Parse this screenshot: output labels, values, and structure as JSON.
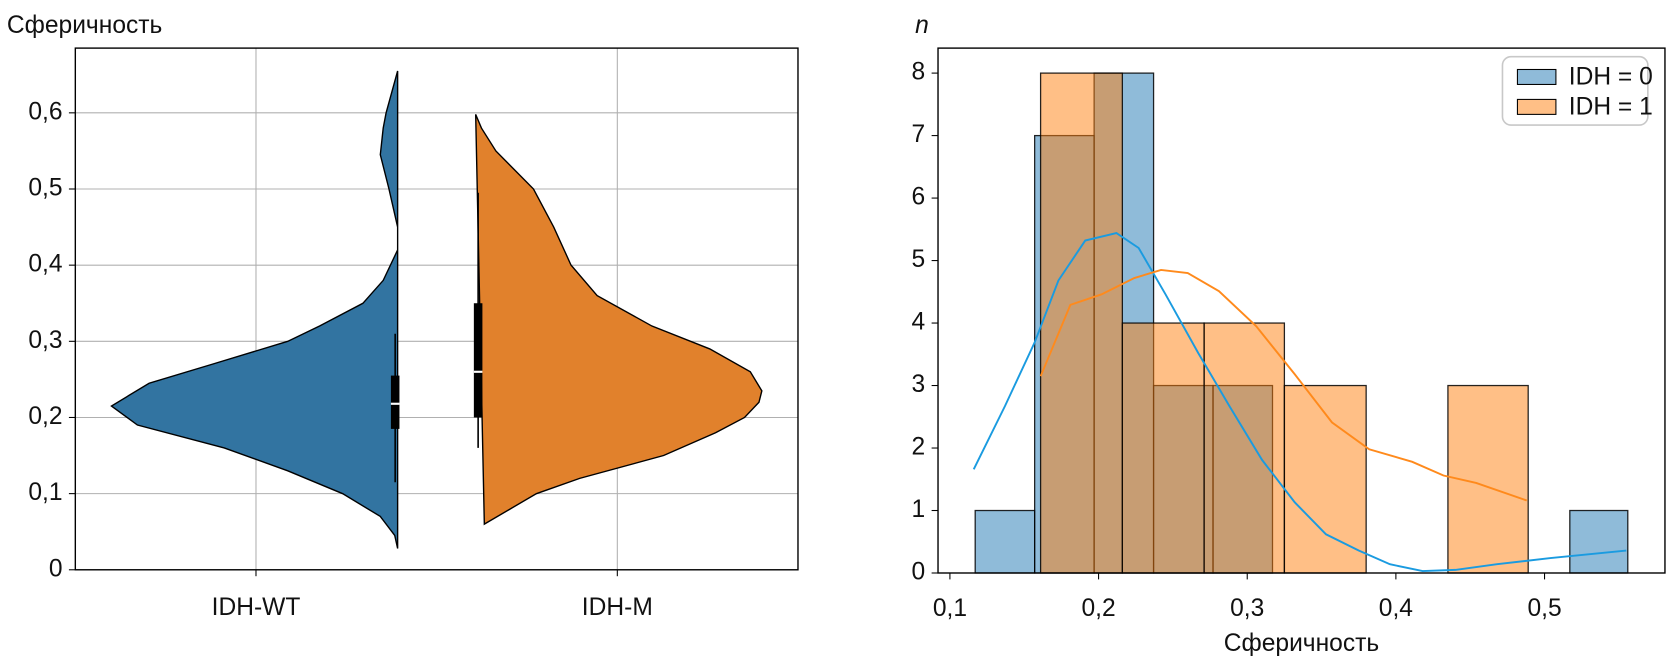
{
  "chart_data": [
    {
      "type": "violin",
      "ylabel": "Сферичность",
      "categories": [
        "IDH-WT",
        "IDH-M"
      ],
      "ylim": [
        0,
        0.685
      ],
      "yticks": [
        0,
        {
          "value": 0.1,
          "label": "0,1"
        },
        {
          "value": 0.2,
          "label": "0,2"
        },
        {
          "value": 0.3,
          "label": "0,3"
        },
        {
          "value": 0.4,
          "label": "0,4"
        },
        {
          "value": 0.5,
          "label": "0,5"
        },
        {
          "value": 0.6,
          "label": "0,6"
        }
      ],
      "grid": true,
      "series": [
        {
          "color": "#3274a1",
          "y": [
            0.028,
            0.045,
            0.07,
            0.1,
            0.13,
            0.16,
            0.19,
            0.215,
            0.245,
            0.27,
            0.3,
            0.32,
            0.35,
            0.38,
            0.42,
            0.45,
            0.5,
            0.545,
            0.58,
            0.6,
            0.655
          ],
          "density": [
            0.01,
            0.02,
            0.07,
            0.2,
            0.39,
            0.61,
            0.91,
            1,
            0.87,
            0.65,
            0.39,
            0.28,
            0.13,
            0.06,
            0.01,
            0.01,
            0.04,
            0.07,
            0.06,
            0.05,
            0.01
          ],
          "whisker": [
            0.115,
            0.31
          ],
          "box": [
            0.185,
            0.255
          ],
          "median": 0.218
        },
        {
          "color": "#e1812c",
          "y": [
            0.06,
            0.08,
            0.1,
            0.12,
            0.15,
            0.18,
            0.2,
            0.22,
            0.235,
            0.26,
            0.29,
            0.32,
            0.36,
            0.4,
            0.45,
            0.5,
            0.55,
            0.58,
            0.598
          ],
          "density": [
            0.04,
            0.13,
            0.22,
            0.37,
            0.66,
            0.84,
            0.94,
            0.99,
            1,
            0.96,
            0.82,
            0.62,
            0.43,
            0.34,
            0.28,
            0.21,
            0.08,
            0.03,
            0.01
          ],
          "whisker": [
            0.16,
            0.495
          ],
          "box": [
            0.2,
            0.35
          ],
          "median": 0.26
        }
      ]
    },
    {
      "type": "histogram",
      "xlabel": "Сферичность",
      "ylabel": "n",
      "xlim": [
        0.092,
        0.581
      ],
      "ylim": [
        0,
        8.4
      ],
      "xticks": [
        {
          "value": 0.1,
          "label": "0,1"
        },
        {
          "value": 0.2,
          "label": "0,2"
        },
        {
          "value": 0.3,
          "label": "0,3"
        },
        {
          "value": 0.4,
          "label": "0,4"
        },
        {
          "value": 0.5,
          "label": "0,5"
        }
      ],
      "yticks": [
        0,
        1,
        2,
        3,
        4,
        5,
        6,
        7,
        8
      ],
      "legend": "upper right",
      "series": [
        {
          "name": "IDH = 0",
          "color": "#1f77b4",
          "line_color": "#1a9be0",
          "bins": [
            0.117,
            0.157,
            0.197,
            0.237,
            0.277,
            0.317,
            0.357,
            0.397,
            0.437,
            0.477,
            0.517,
            0.556
          ],
          "counts": [
            1,
            7,
            8,
            3,
            3,
            0,
            0,
            0,
            0,
            0,
            1
          ],
          "kde": {
            "x": [
              0.116,
              0.137,
              0.157,
              0.173,
              0.191,
              0.212,
              0.227,
              0.245,
              0.267,
              0.288,
              0.31,
              0.332,
              0.353,
              0.375,
              0.396,
              0.418,
              0.44,
              0.468,
              0.504,
              0.555
            ],
            "y": [
              1.66,
              2.67,
              3.69,
              4.68,
              5.32,
              5.44,
              5.2,
              4.46,
              3.52,
              2.67,
              1.81,
              1.13,
              0.62,
              0.36,
              0.14,
              0.03,
              0.05,
              0.14,
              0.24,
              0.36
            ]
          }
        },
        {
          "name": "IDH = 1",
          "color": "#ff7f0e",
          "line_color": "#ff8a1c",
          "bins": [
            0.161,
            0.216,
            0.271,
            0.325,
            0.38,
            0.435,
            0.489
          ],
          "counts": [
            8,
            4,
            4,
            3,
            0,
            3
          ],
          "kde": {
            "x": [
              0.161,
              0.181,
              0.202,
              0.224,
              0.242,
              0.26,
              0.281,
              0.306,
              0.332,
              0.357,
              0.382,
              0.411,
              0.432,
              0.454,
              0.488
            ],
            "y": [
              3.15,
              4.29,
              4.46,
              4.72,
              4.85,
              4.8,
              4.51,
              3.95,
              3.18,
              2.41,
              1.98,
              1.78,
              1.56,
              1.44,
              1.16
            ]
          }
        }
      ]
    }
  ]
}
